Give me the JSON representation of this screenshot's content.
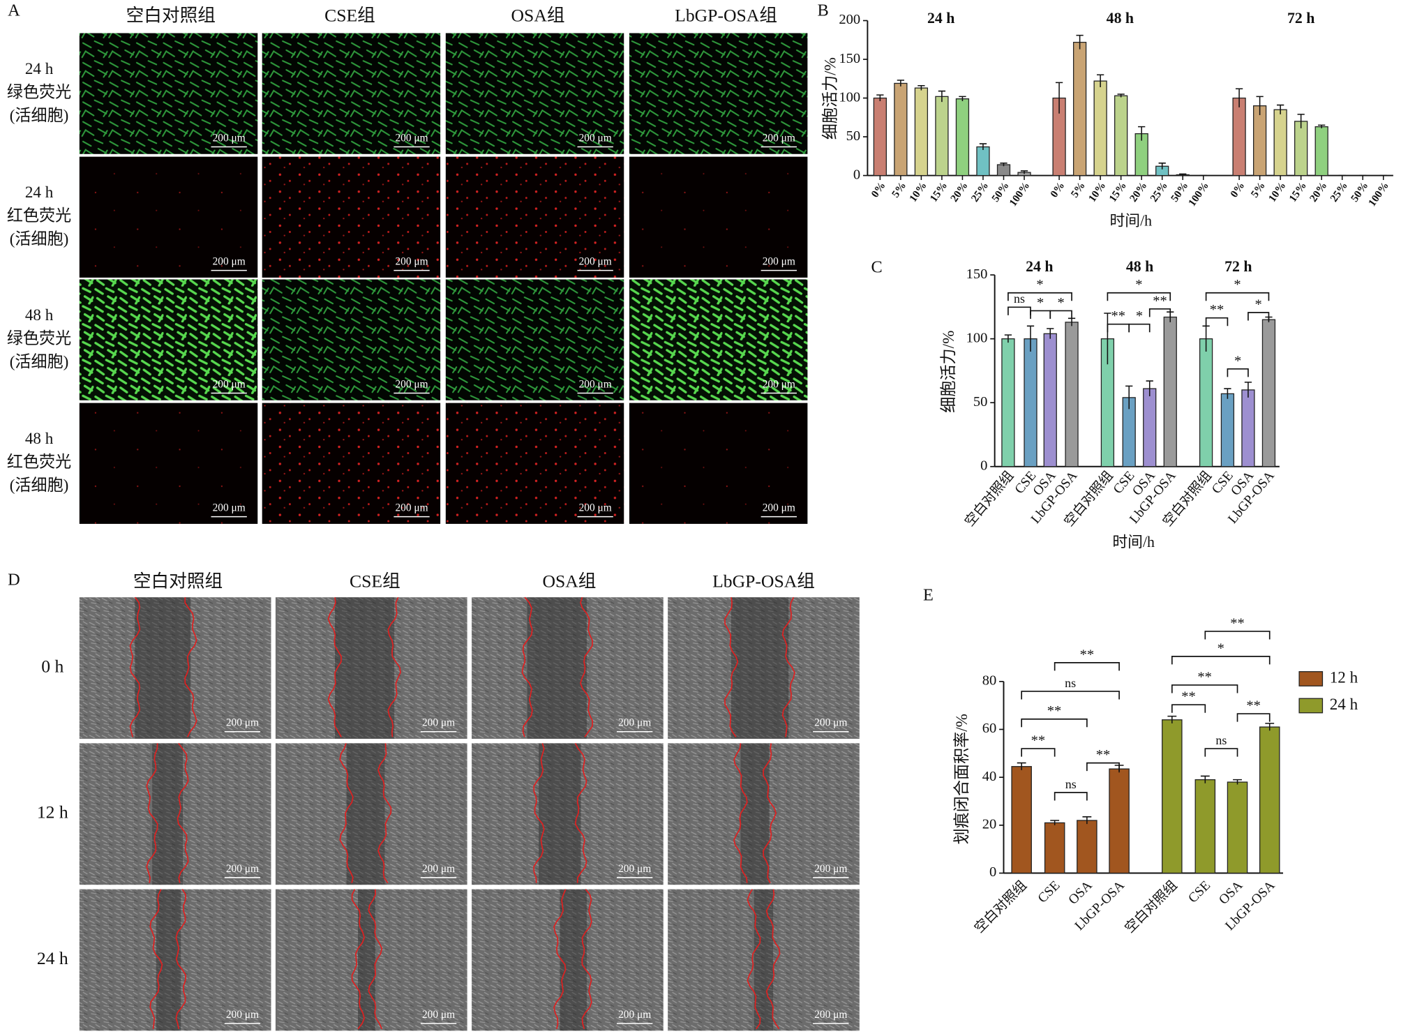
{
  "panel_A": {
    "label": "A",
    "columns": [
      "空白对照组",
      "CSE组",
      "OSA组",
      "LbGP-OSA组"
    ],
    "rows": [
      [
        "24 h",
        "绿色荧光",
        "(活细胞)"
      ],
      [
        "24 h",
        "红色荧光",
        "(活细胞)"
      ],
      [
        "48 h",
        "绿色荧光",
        "(活细胞)"
      ],
      [
        "48 h",
        "红色荧光",
        "(活细胞)"
      ]
    ],
    "scale_bar": "200 μm"
  },
  "panel_D": {
    "label": "D",
    "columns": [
      "空白对照组",
      "CSE组",
      "OSA组",
      "LbGP-OSA组"
    ],
    "rows": [
      "0 h",
      "12 h",
      "24 h"
    ],
    "scale_bar": "200 μm"
  },
  "chart_data": [
    {
      "type": "bar",
      "panel": "B",
      "ylabel": "细胞活力/%",
      "xlabel": "时间/h",
      "ylim": [
        0,
        200
      ],
      "yticks": [
        0,
        50,
        100,
        150,
        200
      ],
      "categories": [
        "0%",
        "5%",
        "10%",
        "15%",
        "20%",
        "25%",
        "50%",
        "100%"
      ],
      "colors": [
        "#c97f72",
        "#c9a474",
        "#d6d38e",
        "#bcd38c",
        "#8fd07f",
        "#70c1c3",
        "#8a8a8a",
        "#a0a0a0"
      ],
      "groups": [
        {
          "name": "24 h",
          "values": [
            100,
            119,
            113,
            102,
            99,
            37,
            14,
            4
          ],
          "errors": [
            4,
            4,
            3,
            7,
            3,
            4,
            2,
            2
          ]
        },
        {
          "name": "48 h",
          "values": [
            100,
            172,
            122,
            103,
            54,
            12,
            1,
            0
          ],
          "errors": [
            20,
            9,
            8,
            2,
            9,
            4,
            1,
            0
          ]
        },
        {
          "name": "72 h",
          "values": [
            100,
            90,
            85,
            70,
            63,
            0,
            0,
            0
          ],
          "errors": [
            12,
            12,
            6,
            9,
            2,
            0,
            0,
            0
          ]
        }
      ]
    },
    {
      "type": "bar",
      "panel": "C",
      "ylabel": "细胞活力/%",
      "xlabel": "时间/h",
      "ylim": [
        0,
        150
      ],
      "yticks": [
        0,
        50,
        100,
        150
      ],
      "categories": [
        "空白对照组",
        "CSE",
        "OSA",
        "LbGP-OSA"
      ],
      "colors": [
        "#7fd0ab",
        "#6aa0c2",
        "#9d8fd0",
        "#9a9a9a"
      ],
      "groups": [
        {
          "name": "24 h",
          "values": [
            100,
            100,
            104,
            113
          ],
          "errors": [
            3,
            10,
            4,
            3
          ],
          "brackets": [
            {
              "from": 0,
              "to": 1,
              "label": "ns"
            },
            {
              "from": 1,
              "to": 2,
              "label": "*"
            },
            {
              "from": 2,
              "to": 3,
              "label": "*"
            },
            {
              "from": 0,
              "to": 3,
              "label": "*"
            }
          ]
        },
        {
          "name": "48 h",
          "values": [
            100,
            54,
            61,
            117
          ],
          "errors": [
            20,
            9,
            6,
            4
          ],
          "brackets": [
            {
              "from": 0,
              "to": 1,
              "label": "**"
            },
            {
              "from": 1,
              "to": 2,
              "label": "*"
            },
            {
              "from": 2,
              "to": 3,
              "label": "**"
            },
            {
              "from": 0,
              "to": 3,
              "label": "*"
            }
          ]
        },
        {
          "name": "72 h",
          "values": [
            100,
            57,
            60,
            115
          ],
          "errors": [
            10,
            4,
            6,
            2
          ],
          "brackets": [
            {
              "from": 0,
              "to": 1,
              "label": "**"
            },
            {
              "from": 1,
              "to": 2,
              "label": "*"
            },
            {
              "from": 2,
              "to": 3,
              "label": "*"
            },
            {
              "from": 0,
              "to": 3,
              "label": "*"
            }
          ]
        }
      ]
    },
    {
      "type": "bar",
      "panel": "E",
      "ylabel": "划痕闭合面积率/%",
      "ylim": [
        0,
        80
      ],
      "yticks": [
        0,
        20,
        40,
        60,
        80
      ],
      "categories": [
        "空白对照组",
        "CSE",
        "OSA",
        "LbGP-OSA"
      ],
      "series": [
        {
          "name": "12 h",
          "color": "#a1561f",
          "values": [
            44.5,
            21,
            22,
            43.5
          ],
          "errors": [
            1.5,
            1,
            1.5,
            1.5
          ],
          "brackets": [
            {
              "from": 0,
              "to": 1,
              "label": "**"
            },
            {
              "from": 1,
              "to": 2,
              "label": "ns"
            },
            {
              "from": 2,
              "to": 3,
              "label": "**"
            },
            {
              "from": 0,
              "to": 2,
              "label": "**"
            },
            {
              "from": 0,
              "to": 3,
              "label": "ns"
            },
            {
              "from": 1,
              "to": 3,
              "label": "**"
            }
          ]
        },
        {
          "name": "24 h",
          "color": "#8f9a2b",
          "values": [
            64,
            39,
            38,
            61
          ],
          "errors": [
            1.5,
            1.5,
            1,
            1.5
          ],
          "brackets": [
            {
              "from": 0,
              "to": 1,
              "label": "**"
            },
            {
              "from": 1,
              "to": 2,
              "label": "ns"
            },
            {
              "from": 2,
              "to": 3,
              "label": "**"
            },
            {
              "from": 0,
              "to": 2,
              "label": "**"
            },
            {
              "from": 0,
              "to": 3,
              "label": "*"
            },
            {
              "from": 1,
              "to": 3,
              "label": "**"
            }
          ]
        }
      ]
    }
  ]
}
